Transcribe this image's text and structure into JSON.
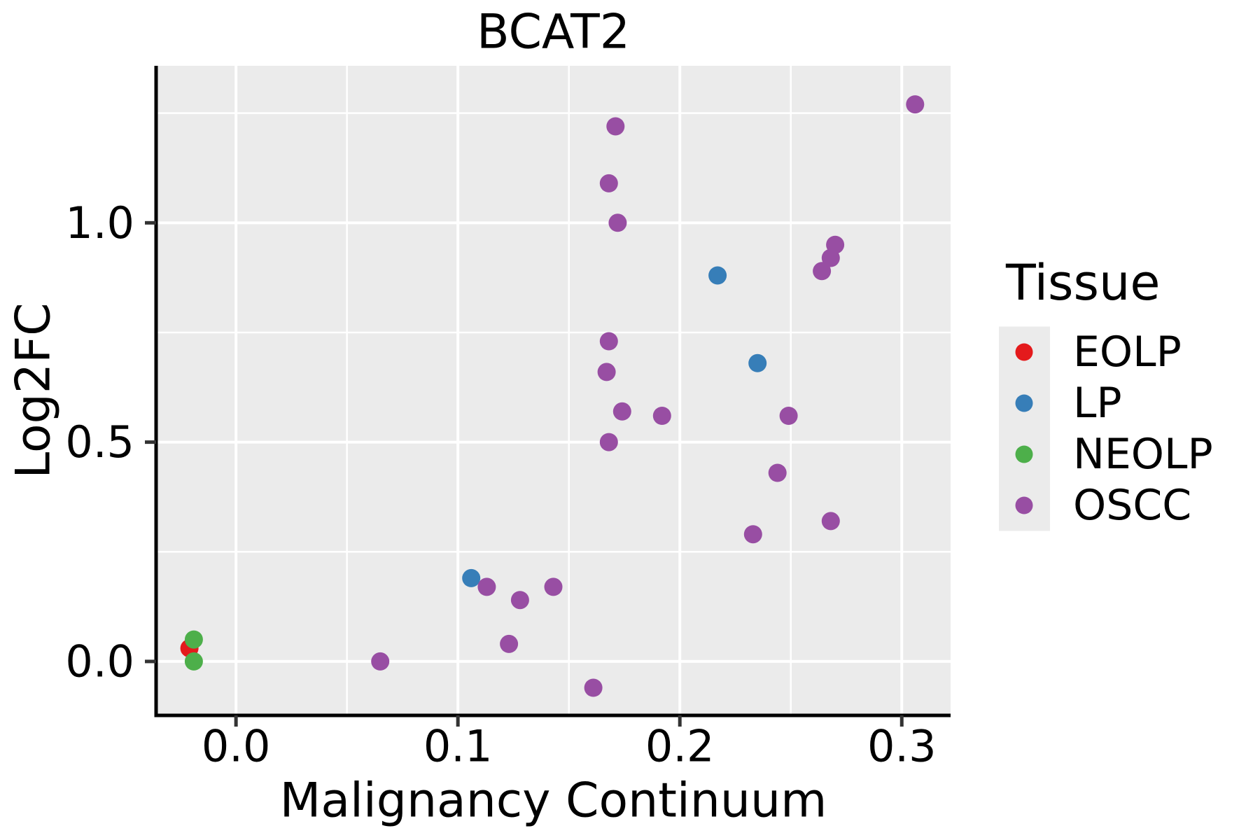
{
  "chart_data": {
    "type": "scatter",
    "title": "BCAT2",
    "xlabel": "Malignancy Continuum",
    "ylabel": "Log2FC",
    "legend": {
      "title": "Tissue",
      "position": "right",
      "entries": [
        "EOLP",
        "LP",
        "NEOLP",
        "OSCC"
      ]
    },
    "xlim": [
      -0.036,
      0.322
    ],
    "ylim": [
      -0.123,
      1.358
    ],
    "x_ticks": {
      "values": [
        0.0,
        0.1,
        0.2,
        0.3
      ],
      "labels": [
        "0.0",
        "0.1",
        "0.2",
        "0.3"
      ]
    },
    "y_ticks": {
      "values": [
        0.0,
        0.5,
        1.0
      ],
      "labels": [
        "0.0",
        "0.5",
        "1.0"
      ]
    },
    "x_minor_gridlines": [
      0.05,
      0.15,
      0.25
    ],
    "y_minor_gridlines": [
      0.25,
      0.75,
      1.25
    ],
    "grid": true,
    "series": [
      {
        "name": "EOLP",
        "color": "#E41A1C",
        "points": [
          [
            -0.021,
            0.03
          ]
        ]
      },
      {
        "name": "LP",
        "color": "#377EB8",
        "points": [
          [
            0.106,
            0.19
          ],
          [
            0.217,
            0.88
          ],
          [
            0.235,
            0.68
          ]
        ]
      },
      {
        "name": "NEOLP",
        "color": "#4DAF4A",
        "points": [
          [
            -0.019,
            0.05
          ],
          [
            -0.019,
            0.0
          ]
        ]
      },
      {
        "name": "OSCC",
        "color": "#984EA3",
        "points": [
          [
            0.306,
            1.27
          ],
          [
            0.171,
            1.22
          ],
          [
            0.168,
            1.09
          ],
          [
            0.172,
            1.0
          ],
          [
            0.27,
            0.95
          ],
          [
            0.268,
            0.92
          ],
          [
            0.264,
            0.89
          ],
          [
            0.168,
            0.73
          ],
          [
            0.167,
            0.66
          ],
          [
            0.174,
            0.57
          ],
          [
            0.192,
            0.56
          ],
          [
            0.249,
            0.56
          ],
          [
            0.168,
            0.5
          ],
          [
            0.244,
            0.43
          ],
          [
            0.268,
            0.32
          ],
          [
            0.233,
            0.29
          ],
          [
            0.143,
            0.17
          ],
          [
            0.113,
            0.17
          ],
          [
            0.128,
            0.14
          ],
          [
            0.123,
            0.04
          ],
          [
            0.065,
            0.0
          ],
          [
            0.161,
            -0.06
          ]
        ]
      }
    ]
  },
  "style_colors": {
    "panel_background": "#EBEBEB",
    "grid": "#FFFFFF",
    "spine": "#000000",
    "tick": "#333333",
    "text": "#000000",
    "page_background": "#FFFFFF"
  }
}
